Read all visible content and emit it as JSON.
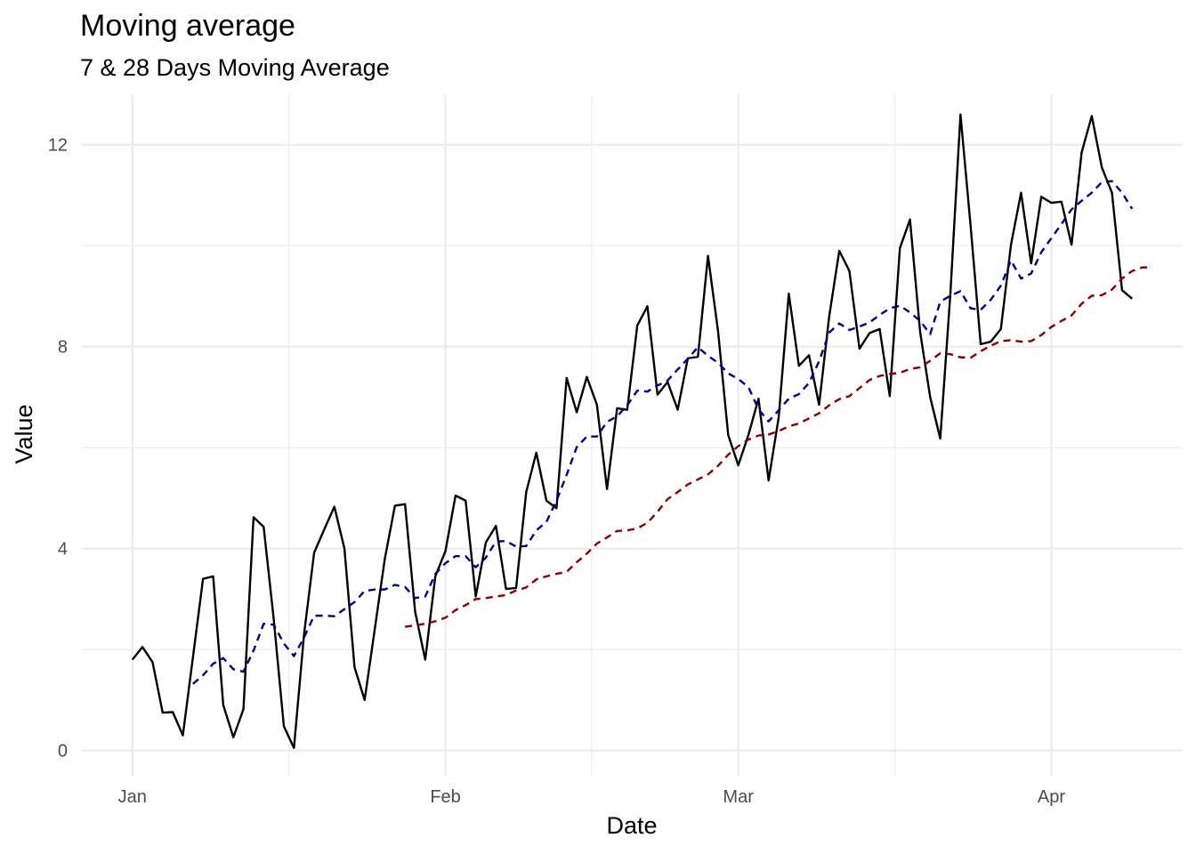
{
  "chart_data": {
    "type": "line",
    "title": "Moving average",
    "subtitle": "7 & 28 Days Moving Average",
    "xlabel": "Date",
    "ylabel": "Value",
    "x_tick_labels": [
      {
        "date": "2020-01-01",
        "label": "Jan"
      },
      {
        "date": "2020-02-01",
        "label": "Feb"
      },
      {
        "date": "2020-03-01",
        "label": "Mar"
      },
      {
        "date": "2020-04-01",
        "label": "Apr"
      }
    ],
    "y_ticks": [
      0,
      4,
      8,
      12
    ],
    "xlim": [
      "2019-12-27",
      "2020-04-14"
    ],
    "ylim": [
      -0.5,
      13.0
    ],
    "grid": true,
    "legend": "none",
    "colors": {
      "raw": "#000000",
      "ma7": "#00008b",
      "ma28": "#8b0000",
      "grid": "#ebebeb"
    },
    "series": [
      {
        "key": "raw",
        "style": "solid",
        "start_date": "2020-01-01",
        "values": [
          1.8,
          2.05,
          1.75,
          0.75,
          0.76,
          0.3,
          1.85,
          3.4,
          3.45,
          0.9,
          0.26,
          0.82,
          4.62,
          4.43,
          2.6,
          0.48,
          0.05,
          2.3,
          3.92,
          4.38,
          4.83,
          4.0,
          1.65,
          1.0,
          2.4,
          3.8,
          4.85,
          4.88,
          2.75,
          1.8,
          3.45,
          3.95,
          5.05,
          4.95,
          3.05,
          4.12,
          4.45,
          3.2,
          3.22,
          5.12,
          5.9,
          4.95,
          4.8,
          7.38,
          6.7,
          7.4,
          6.85,
          5.18,
          6.78,
          6.75,
          8.42,
          8.8,
          7.05,
          7.3,
          6.75,
          7.77,
          7.8,
          9.8,
          8.3,
          6.25,
          5.65,
          6.25,
          6.97,
          5.35,
          6.6,
          9.05,
          7.62,
          7.83,
          6.85,
          8.6,
          9.9,
          9.5,
          7.96,
          8.27,
          8.35,
          7.02,
          9.95,
          10.52,
          8.3,
          7.0,
          6.18,
          9.05,
          12.6,
          10.4,
          8.05,
          8.1,
          8.35,
          10.02,
          11.05,
          9.65,
          10.97,
          10.85,
          10.87,
          10.02,
          11.85,
          12.57,
          11.55,
          11.05,
          9.12,
          8.95
        ]
      },
      {
        "key": "ma7",
        "style": "dashed",
        "start_date": "2020-01-07",
        "values": [
          1.32,
          1.49,
          1.72,
          1.83,
          1.61,
          1.56,
          1.98,
          2.51,
          2.49,
          2.12,
          1.87,
          2.24,
          2.67,
          2.67,
          2.66,
          2.8,
          2.94,
          3.16,
          3.19,
          3.19,
          3.28,
          3.24,
          3.02,
          3.05,
          3.5,
          3.71,
          3.85,
          3.85,
          3.63,
          3.82,
          4.14,
          4.15,
          4.04,
          4.05,
          4.36,
          4.53,
          4.95,
          5.46,
          6.01,
          6.22,
          6.22,
          6.51,
          6.62,
          6.84,
          7.13,
          7.11,
          7.23,
          7.33,
          7.55,
          7.76,
          7.99,
          7.82,
          7.68,
          7.47,
          7.36,
          7.2,
          6.76,
          6.52,
          6.74,
          6.97,
          7.06,
          7.28,
          7.71,
          8.28,
          8.46,
          8.33,
          8.4,
          8.48,
          8.63,
          8.76,
          8.81,
          8.68,
          8.51,
          8.25,
          8.89,
          9.01,
          9.1,
          8.76,
          8.73,
          8.93,
          9.21,
          9.71,
          9.35,
          9.45,
          9.87,
          10.15,
          10.43,
          10.72,
          10.89,
          11.05,
          11.26,
          11.28,
          11.05,
          10.73
        ]
      },
      {
        "key": "ma28",
        "style": "dashed",
        "start_date": "2020-01-28",
        "values": [
          2.45,
          2.48,
          2.51,
          2.56,
          2.63,
          2.78,
          2.88,
          3.0,
          3.02,
          3.05,
          3.08,
          3.17,
          3.23,
          3.39,
          3.45,
          3.5,
          3.54,
          3.73,
          3.9,
          4.1,
          4.22,
          4.35,
          4.36,
          4.4,
          4.51,
          4.73,
          4.98,
          5.12,
          5.27,
          5.37,
          5.47,
          5.64,
          5.86,
          6.03,
          6.16,
          6.24,
          6.26,
          6.33,
          6.42,
          6.48,
          6.58,
          6.68,
          6.84,
          6.96,
          7.02,
          7.18,
          7.34,
          7.42,
          7.46,
          7.48,
          7.56,
          7.59,
          7.72,
          7.87,
          7.85,
          7.79,
          7.78,
          7.91,
          8.02,
          8.11,
          8.13,
          8.1,
          8.11,
          8.23,
          8.39,
          8.51,
          8.62,
          8.85,
          9.01,
          9.02,
          9.13,
          9.35,
          9.5,
          9.57,
          9.57
        ]
      }
    ]
  }
}
